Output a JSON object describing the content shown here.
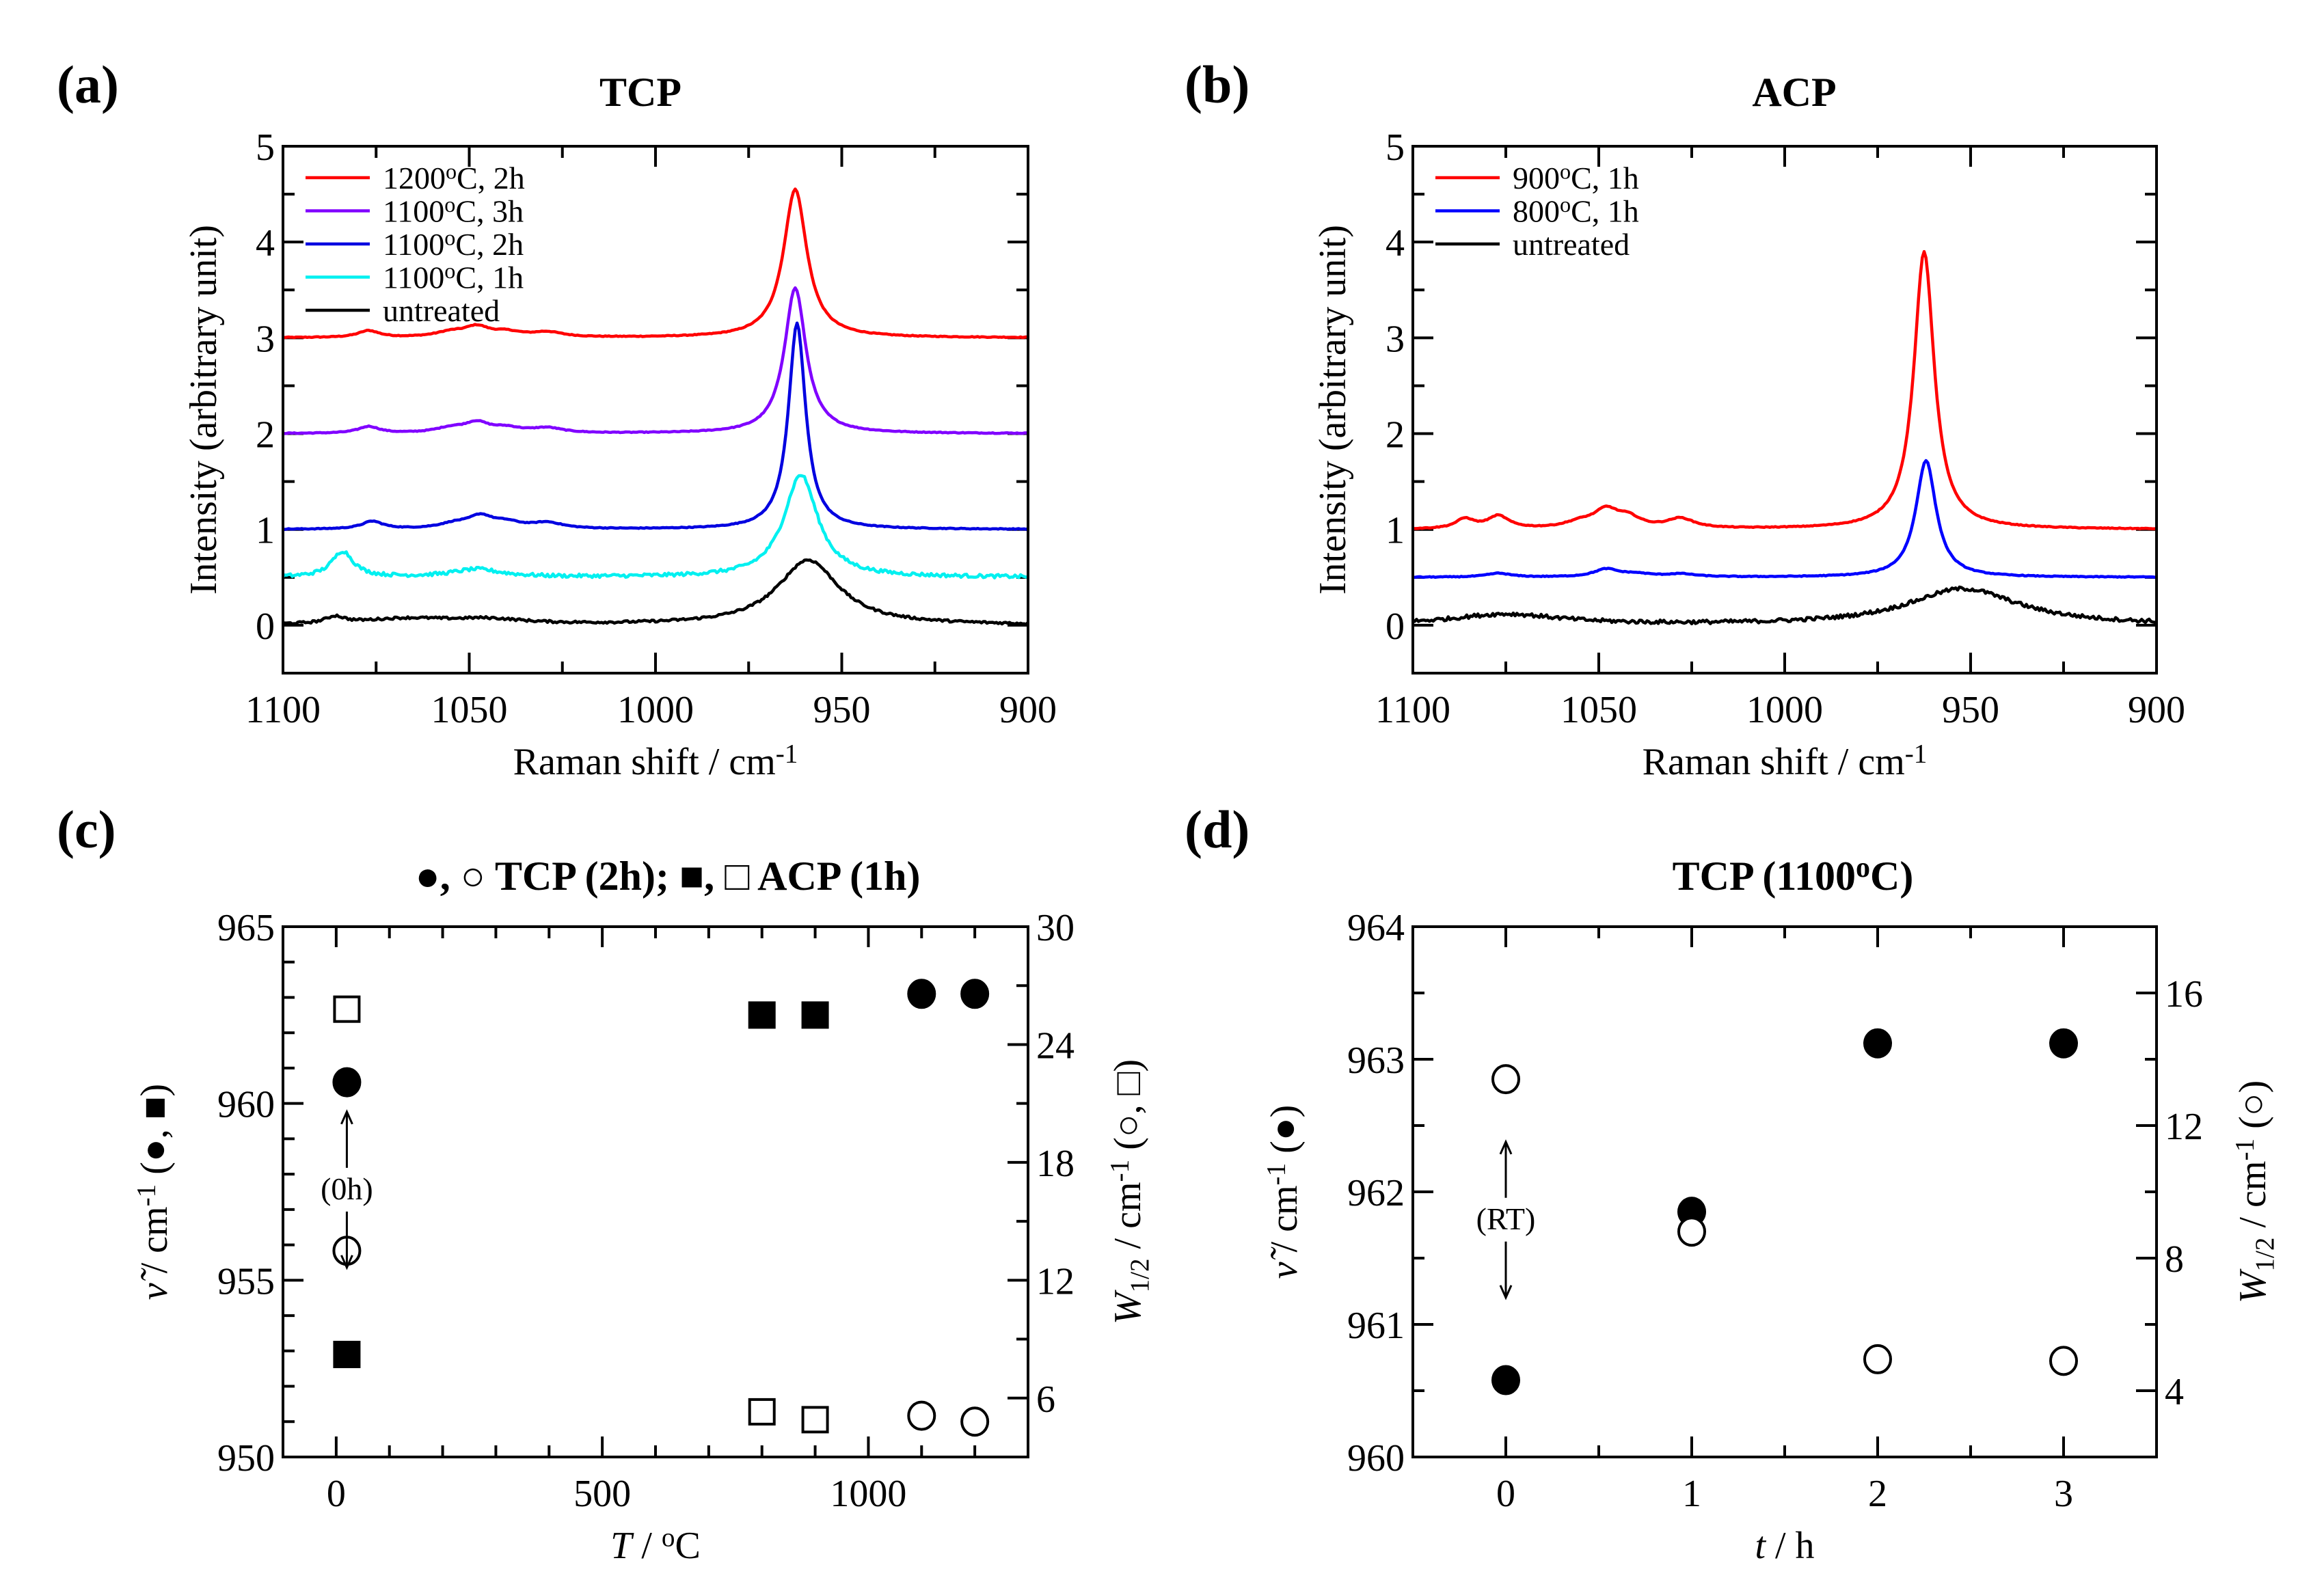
{
  "chart_data": [
    {
      "type": "line",
      "panel_label": "(a)",
      "title": [
        {
          "t": "TCP"
        }
      ],
      "xlabel": [
        {
          "t": "Raman shift / cm"
        },
        {
          "t": "-1",
          "s": "sup"
        }
      ],
      "ylabel": [
        {
          "t": "Intensity (arbitrary unit)"
        }
      ],
      "xlim": [
        1100,
        900
      ],
      "ylim": [
        -0.5,
        5
      ],
      "xticks": [
        1100,
        1050,
        1000,
        950,
        900
      ],
      "xminor_step": 25,
      "yticks": [
        0,
        1,
        2,
        3,
        4,
        5
      ],
      "yminor_step": 0.5,
      "legend_position": "top-left",
      "series": [
        {
          "legend": [
            {
              "t": "1200"
            },
            {
              "t": "o",
              "s": "sup"
            },
            {
              "t": "C, 2h"
            }
          ],
          "color": "#ff0000",
          "offset": 3,
          "noise": 0.004,
          "peaks": [
            [
              962.5,
              1.55,
              3.8
            ],
            [
              1077,
              0.07,
              3.5
            ],
            [
              1048,
              0.1,
              4
            ],
            [
              1055,
              0.05,
              5
            ],
            [
              1040,
              0.05,
              5
            ],
            [
              1029,
              0.05,
              5
            ]
          ]
        },
        {
          "legend": [
            {
              "t": "1100"
            },
            {
              "t": "o",
              "s": "sup"
            },
            {
              "t": "C, 3h"
            }
          ],
          "color": "#8000ff",
          "offset": 2,
          "noise": 0.004,
          "peaks": [
            [
              962.5,
              1.52,
              3.5
            ],
            [
              1077,
              0.07,
              3.5
            ],
            [
              1048,
              0.1,
              4
            ],
            [
              1055,
              0.05,
              5
            ],
            [
              1040,
              0.05,
              5
            ],
            [
              1029,
              0.05,
              5
            ]
          ]
        },
        {
          "legend": [
            {
              "t": "1100"
            },
            {
              "t": "o",
              "s": "sup"
            },
            {
              "t": "C, 2h"
            }
          ],
          "color": "#0000e0",
          "offset": 1,
          "noise": 0.004,
          "peaks": [
            [
              962,
              2.15,
              2.8
            ],
            [
              1076,
              0.08,
              3.5
            ],
            [
              1047,
              0.12,
              4
            ],
            [
              1054,
              0.05,
              5
            ],
            [
              1040,
              0.06,
              5
            ],
            [
              1029,
              0.06,
              5
            ]
          ]
        },
        {
          "legend": [
            {
              "t": "1100"
            },
            {
              "t": "o",
              "s": "sup"
            },
            {
              "t": "C, 1h"
            }
          ],
          "color": "#00f0f0",
          "offset": 0.5,
          "noise": 0.018,
          "peaks": [
            [
              961,
              1.07,
              5.5
            ],
            [
              1084,
              0.27,
              3.5
            ],
            [
              1048,
              0.08,
              8
            ]
          ]
        },
        {
          "legend": [
            {
              "t": "untreated"
            }
          ],
          "color": "#000000",
          "offset": 0,
          "noise": 0.012,
          "peaks": [
            [
              959,
              0.68,
              10
            ],
            [
              1086,
              0.07,
              3
            ],
            [
              1067,
              0.06,
              15
            ],
            [
              1045,
              0.05,
              12
            ]
          ]
        }
      ]
    },
    {
      "type": "line",
      "panel_label": "(b)",
      "title": [
        {
          "t": "ACP"
        }
      ],
      "xlabel": [
        {
          "t": "Raman shift / cm"
        },
        {
          "t": "-1",
          "s": "sup"
        }
      ],
      "ylabel": [
        {
          "t": "Intensity (arbitrary unit)"
        }
      ],
      "xlim": [
        1100,
        900
      ],
      "ylim": [
        -0.5,
        5
      ],
      "xticks": [
        1100,
        1050,
        1000,
        950,
        900
      ],
      "xminor_step": 25,
      "yticks": [
        0,
        1,
        2,
        3,
        4,
        5
      ],
      "yminor_step": 0.5,
      "legend_position": "top-left",
      "series": [
        {
          "legend": [
            {
              "t": "900"
            },
            {
              "t": "o",
              "s": "sup"
            },
            {
              "t": "C, 1h"
            }
          ],
          "color": "#ff0000",
          "offset": 1,
          "noise": 0.004,
          "peaks": [
            [
              962.5,
              2.9,
              3.3
            ],
            [
              1086,
              0.1,
              3
            ],
            [
              1077,
              0.13,
              3.5
            ],
            [
              1055,
              0.06,
              5
            ],
            [
              1048,
              0.18,
              4
            ],
            [
              1042,
              0.1,
              4
            ],
            [
              1028,
              0.1,
              4.5
            ]
          ]
        },
        {
          "legend": [
            {
              "t": "800"
            },
            {
              "t": "o",
              "s": "sup"
            },
            {
              "t": "C, 1h"
            }
          ],
          "color": "#0000ff",
          "offset": 0.5,
          "noise": 0.004,
          "peaks": [
            [
              962,
              1.22,
              3.3
            ],
            [
              1077,
              0.04,
              4
            ],
            [
              1048,
              0.08,
              4
            ],
            [
              1040,
              0.03,
              5
            ],
            [
              1028,
              0.03,
              5
            ]
          ]
        },
        {
          "legend": [
            {
              "t": "untreated"
            }
          ],
          "color": "#000000",
          "offset": 0,
          "noise": 0.02,
          "peaks": [
            [
              952,
              0.38,
              18
            ],
            [
              1075,
              0.11,
              18
            ]
          ]
        }
      ]
    },
    {
      "type": "scatter",
      "panel_label": "(c)",
      "title": [
        {
          "t": "●, ○ TCP (2h); ■, □ ACP (1h)"
        }
      ],
      "xlabel": [
        {
          "t": "T",
          "s": "it"
        },
        {
          "t": " / "
        },
        {
          "t": "o",
          "s": "sup"
        },
        {
          "t": "C"
        }
      ],
      "ylabel": [
        {
          "t": "ν̃",
          "s": "it"
        },
        {
          "t": " / cm"
        },
        {
          "t": "-1",
          "s": "sup"
        },
        {
          "t": " (●, ■)"
        }
      ],
      "ylabel_right": [
        {
          "t": "W",
          "s": "it"
        },
        {
          "t": "1/2",
          "s": "sub"
        },
        {
          "t": " / cm"
        },
        {
          "t": "-1",
          "s": "sup"
        },
        {
          "t": " (○, □)"
        }
      ],
      "xlim": [
        -100,
        1300
      ],
      "ylim": [
        950,
        965
      ],
      "ylim_right": [
        3,
        30
      ],
      "xticks": [
        0,
        500,
        1000
      ],
      "xminor_step": 100,
      "yticks": [
        950,
        955,
        960,
        965
      ],
      "yminor_step": 1,
      "yticks_right": [
        6,
        12,
        18,
        24,
        30
      ],
      "yminor_step_right": 3,
      "annotation": "(0h)",
      "series": [
        {
          "name": "TCP (2h) wavenumber",
          "marker": "circle-filled",
          "axis": "left",
          "points": [
            [
              20,
              960.6
            ],
            [
              1100,
              963.1
            ],
            [
              1200,
              963.1
            ]
          ]
        },
        {
          "name": "TCP (2h) W1/2",
          "marker": "circle-open",
          "axis": "right",
          "points": [
            [
              20,
              13.5
            ],
            [
              1100,
              5.1
            ],
            [
              1200,
              4.8
            ]
          ]
        },
        {
          "name": "ACP (1h) wavenumber",
          "marker": "square-filled",
          "axis": "left",
          "points": [
            [
              20,
              952.9
            ],
            [
              800,
              962.5
            ],
            [
              900,
              962.5
            ]
          ]
        },
        {
          "name": "ACP (1h) W1/2",
          "marker": "square-open",
          "axis": "right",
          "points": [
            [
              20,
              25.8
            ],
            [
              800,
              5.3
            ],
            [
              900,
              4.9
            ]
          ]
        }
      ]
    },
    {
      "type": "scatter",
      "panel_label": "(d)",
      "title": [
        {
          "t": "TCP (1100"
        },
        {
          "t": "o",
          "s": "sup"
        },
        {
          "t": "C)"
        }
      ],
      "xlabel": [
        {
          "t": "t",
          "s": "it"
        },
        {
          "t": " / h"
        }
      ],
      "ylabel": [
        {
          "t": "ν̃",
          "s": "it"
        },
        {
          "t": " / cm"
        },
        {
          "t": "-1",
          "s": "sup"
        },
        {
          "t": " (●)"
        }
      ],
      "ylabel_right": [
        {
          "t": "W",
          "s": "it"
        },
        {
          "t": "1/2",
          "s": "sub"
        },
        {
          "t": " / cm"
        },
        {
          "t": "-1",
          "s": "sup"
        },
        {
          "t": " (○)"
        }
      ],
      "xlim": [
        -0.5,
        3.5
      ],
      "ylim": [
        960,
        964
      ],
      "ylim_right": [
        2,
        18
      ],
      "xticks": [
        0,
        1,
        2,
        3
      ],
      "xminor_step": 0.5,
      "yticks": [
        960,
        961,
        962,
        963,
        964
      ],
      "yminor_step": 0.5,
      "yticks_right": [
        4,
        8,
        12,
        16
      ],
      "yminor_step_right": 2,
      "annotation": "(RT)",
      "series": [
        {
          "name": "wavenumber",
          "marker": "circle-filled",
          "axis": "left",
          "points": [
            [
              0,
              960.58
            ],
            [
              1,
              961.85
            ],
            [
              2,
              963.12
            ],
            [
              3,
              963.12
            ]
          ]
        },
        {
          "name": "W1/2",
          "marker": "circle-open",
          "axis": "right",
          "points": [
            [
              0,
              13.4
            ],
            [
              1,
              8.8
            ],
            [
              2,
              4.95
            ],
            [
              3,
              4.9
            ]
          ]
        }
      ]
    }
  ]
}
